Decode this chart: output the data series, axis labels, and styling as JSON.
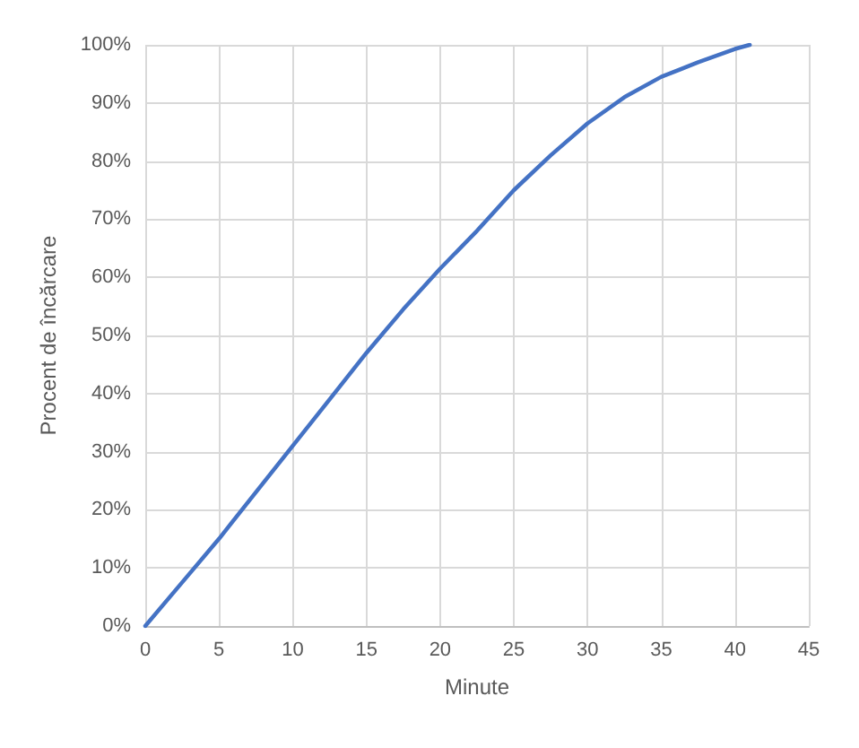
{
  "chart_data": {
    "type": "line",
    "xlabel": "Minute",
    "ylabel": "Procent de încărcare",
    "x": [
      0,
      2.5,
      5,
      7.5,
      10,
      12.5,
      15,
      17.5,
      20,
      22.5,
      25,
      27.5,
      30,
      32.5,
      35,
      37.5,
      40,
      41
    ],
    "series": [
      {
        "color": "#4472c4",
        "values": [
          0,
          7.5,
          15,
          23,
          31,
          39,
          47,
          54.5,
          61.5,
          68,
          75,
          81,
          86.5,
          91,
          94.5,
          97,
          99.3,
          100
        ]
      }
    ],
    "xlim": [
      0,
      45
    ],
    "xticks": [
      0,
      5,
      10,
      15,
      20,
      25,
      30,
      35,
      40,
      45
    ],
    "ylim": [
      0,
      100
    ],
    "yticks": [
      {
        "value": 0,
        "label": "0%"
      },
      {
        "value": 10,
        "label": "10%"
      },
      {
        "value": 20,
        "label": "20%"
      },
      {
        "value": 30,
        "label": "30%"
      },
      {
        "value": 40,
        "label": "40%"
      },
      {
        "value": 50,
        "label": "50%"
      },
      {
        "value": 60,
        "label": "60%"
      },
      {
        "value": 70,
        "label": "70%"
      },
      {
        "value": 80,
        "label": "80%"
      },
      {
        "value": 90,
        "label": "90%"
      },
      {
        "value": 100,
        "label": "100%"
      }
    ],
    "grid": true,
    "marker": "none",
    "line_style": "solid"
  }
}
